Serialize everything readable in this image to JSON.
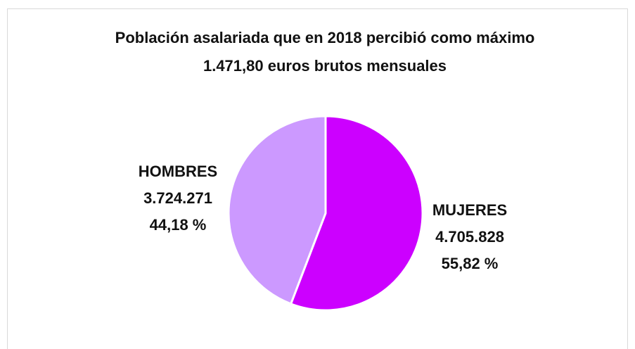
{
  "chart_data": {
    "type": "pie",
    "title": [
      "Población asalariada que en 2018 percibió como máximo",
      "1.471,80 euros brutos mensuales"
    ],
    "categories": [
      "MUJERES",
      "HOMBRES"
    ],
    "values": [
      4705828,
      3724271
    ],
    "value_labels": [
      "4.705.828",
      "3.724.271"
    ],
    "percentages": [
      55.82,
      44.18
    ],
    "percentage_labels": [
      "55,82 %",
      "44,18 %"
    ],
    "colors": [
      "#cc00ff",
      "#cc99ff"
    ]
  }
}
